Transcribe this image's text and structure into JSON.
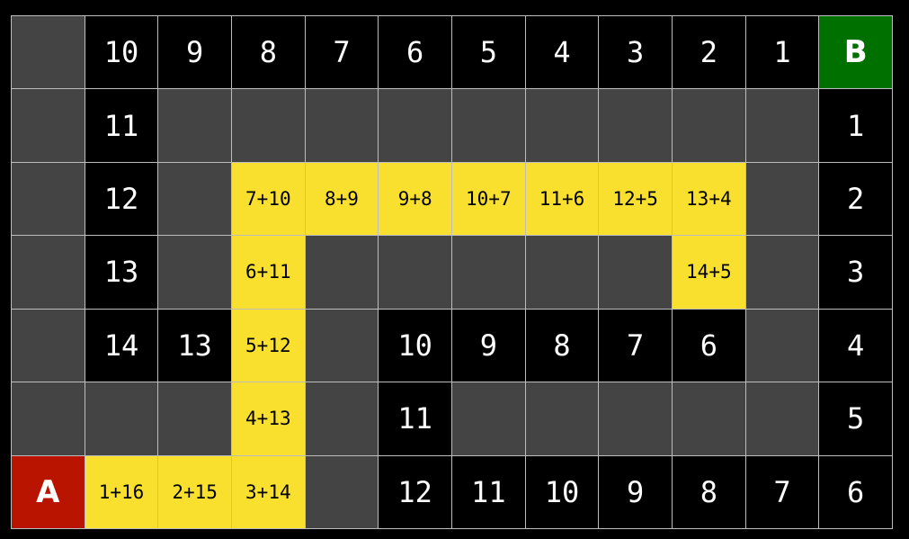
{
  "colors": {
    "wall": "#444444",
    "open": "#000000",
    "path": "#f9e02f",
    "start": "#b81400",
    "goal": "#007000"
  },
  "grid": {
    "rows": [
      [
        {
          "type": "wall",
          "label": ""
        },
        {
          "type": "open",
          "label": "10"
        },
        {
          "type": "open",
          "label": "9"
        },
        {
          "type": "open",
          "label": "8"
        },
        {
          "type": "open",
          "label": "7"
        },
        {
          "type": "open",
          "label": "6"
        },
        {
          "type": "open",
          "label": "5"
        },
        {
          "type": "open",
          "label": "4"
        },
        {
          "type": "open",
          "label": "3"
        },
        {
          "type": "open",
          "label": "2"
        },
        {
          "type": "open",
          "label": "1"
        },
        {
          "type": "goal",
          "label": "B"
        }
      ],
      [
        {
          "type": "wall",
          "label": ""
        },
        {
          "type": "open",
          "label": "11"
        },
        {
          "type": "wall",
          "label": ""
        },
        {
          "type": "wall",
          "label": ""
        },
        {
          "type": "wall",
          "label": ""
        },
        {
          "type": "wall",
          "label": ""
        },
        {
          "type": "wall",
          "label": ""
        },
        {
          "type": "wall",
          "label": ""
        },
        {
          "type": "wall",
          "label": ""
        },
        {
          "type": "wall",
          "label": ""
        },
        {
          "type": "wall",
          "label": ""
        },
        {
          "type": "open",
          "label": "1"
        }
      ],
      [
        {
          "type": "wall",
          "label": ""
        },
        {
          "type": "open",
          "label": "12"
        },
        {
          "type": "wall",
          "label": ""
        },
        {
          "type": "path",
          "label": "7+10"
        },
        {
          "type": "path",
          "label": "8+9"
        },
        {
          "type": "path",
          "label": "9+8"
        },
        {
          "type": "path",
          "label": "10+7"
        },
        {
          "type": "path",
          "label": "11+6"
        },
        {
          "type": "path",
          "label": "12+5"
        },
        {
          "type": "path",
          "label": "13+4"
        },
        {
          "type": "wall",
          "label": ""
        },
        {
          "type": "open",
          "label": "2"
        }
      ],
      [
        {
          "type": "wall",
          "label": ""
        },
        {
          "type": "open",
          "label": "13"
        },
        {
          "type": "wall",
          "label": ""
        },
        {
          "type": "path",
          "label": "6+11"
        },
        {
          "type": "wall",
          "label": ""
        },
        {
          "type": "wall",
          "label": ""
        },
        {
          "type": "wall",
          "label": ""
        },
        {
          "type": "wall",
          "label": ""
        },
        {
          "type": "wall",
          "label": ""
        },
        {
          "type": "path",
          "label": "14+5"
        },
        {
          "type": "wall",
          "label": ""
        },
        {
          "type": "open",
          "label": "3"
        }
      ],
      [
        {
          "type": "wall",
          "label": ""
        },
        {
          "type": "open",
          "label": "14"
        },
        {
          "type": "open",
          "label": "13"
        },
        {
          "type": "path",
          "label": "5+12"
        },
        {
          "type": "wall",
          "label": ""
        },
        {
          "type": "open",
          "label": "10"
        },
        {
          "type": "open",
          "label": "9"
        },
        {
          "type": "open",
          "label": "8"
        },
        {
          "type": "open",
          "label": "7"
        },
        {
          "type": "open",
          "label": "6"
        },
        {
          "type": "wall",
          "label": ""
        },
        {
          "type": "open",
          "label": "4"
        }
      ],
      [
        {
          "type": "wall",
          "label": ""
        },
        {
          "type": "wall",
          "label": ""
        },
        {
          "type": "wall",
          "label": ""
        },
        {
          "type": "path",
          "label": "4+13"
        },
        {
          "type": "wall",
          "label": ""
        },
        {
          "type": "open",
          "label": "11"
        },
        {
          "type": "wall",
          "label": ""
        },
        {
          "type": "wall",
          "label": ""
        },
        {
          "type": "wall",
          "label": ""
        },
        {
          "type": "wall",
          "label": ""
        },
        {
          "type": "wall",
          "label": ""
        },
        {
          "type": "open",
          "label": "5"
        }
      ],
      [
        {
          "type": "start",
          "label": "A"
        },
        {
          "type": "path",
          "label": "1+16"
        },
        {
          "type": "path",
          "label": "2+15"
        },
        {
          "type": "path",
          "label": "3+14"
        },
        {
          "type": "wall",
          "label": ""
        },
        {
          "type": "open",
          "label": "12"
        },
        {
          "type": "open",
          "label": "11"
        },
        {
          "type": "open",
          "label": "10"
        },
        {
          "type": "open",
          "label": "9"
        },
        {
          "type": "open",
          "label": "8"
        },
        {
          "type": "open",
          "label": "7"
        },
        {
          "type": "open",
          "label": "6"
        }
      ]
    ]
  }
}
